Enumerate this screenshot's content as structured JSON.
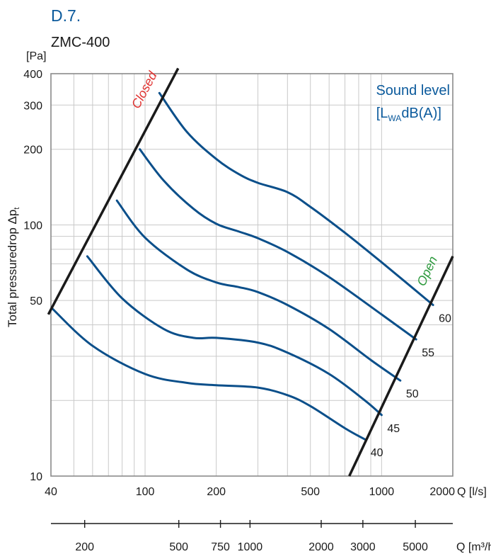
{
  "header": {
    "code": "D.7.",
    "model": "ZMC-400"
  },
  "colors": {
    "curve": "#0b4f8a",
    "title_blue": "#0b5a9c",
    "closed_label": "#e0312f",
    "open_label": "#2e9a3e",
    "grid": "#c9c9c9",
    "boundary": "#1a1a1a"
  },
  "chart_data": {
    "type": "line",
    "x_scale": "log",
    "y_scale": "log",
    "xlim": [
      40,
      2000
    ],
    "ylim": [
      10,
      400
    ],
    "ylabel": "Total pressuredrop Δp",
    "ylabel_sub": "t",
    "y_unit": "[Pa]",
    "x_unit": "Q [l/s]",
    "x2_unit": "Q [m³/h]",
    "x_ticks": [
      40,
      100,
      200,
      500,
      1000,
      2000
    ],
    "x_tick_labels": [
      "40",
      "100",
      "200",
      "500",
      "1000",
      "2000"
    ],
    "y_ticks": [
      10,
      50,
      100,
      200,
      300,
      400
    ],
    "y_tick_labels": [
      "10",
      "50",
      "100",
      "200",
      "300",
      "400"
    ],
    "x2_ticks": [
      200,
      500,
      750,
      1000,
      2000,
      3000,
      5000
    ],
    "x2_tick_labels": [
      "200",
      "500",
      "750",
      "1000",
      "2000",
      "3000",
      "5000"
    ],
    "legend_title": "Sound level",
    "legend_unit_pre": "[L",
    "legend_unit_sub": "WA",
    "legend_unit_post": "dB(A)]",
    "boundary_labels": {
      "closed": "Closed",
      "open": "Open"
    },
    "boundaries": {
      "closed": [
        [
          39,
          44
        ],
        [
          138,
          420
        ]
      ],
      "open": [
        [
          730,
          10
        ],
        [
          2000,
          75
        ]
      ]
    },
    "series": [
      {
        "label": "40",
        "x": [
          40,
          60,
          100,
          150,
          200,
          300,
          400,
          500,
          700,
          850
        ],
        "y": [
          47,
          33,
          25.5,
          23.5,
          23,
          22.5,
          21,
          19,
          15.5,
          14
        ]
      },
      {
        "label": "45",
        "x": [
          57,
          80,
          120,
          160,
          200,
          300,
          400,
          600,
          850,
          1000
        ],
        "y": [
          75,
          51,
          38.5,
          35.5,
          35.5,
          34,
          31,
          25.5,
          20,
          17.5
        ]
      },
      {
        "label": "50",
        "x": [
          76,
          100,
          150,
          200,
          250,
          300,
          400,
          600,
          900,
          1200
        ],
        "y": [
          125,
          89,
          66.5,
          59,
          56.5,
          54,
          48,
          38.5,
          29,
          24
        ]
      },
      {
        "label": "55",
        "x": [
          95,
          120,
          160,
          200,
          250,
          300,
          400,
          600,
          1000,
          1400
        ],
        "y": [
          200,
          150,
          116,
          101,
          94,
          88.5,
          78,
          62,
          44,
          35
        ]
      },
      {
        "label": "60",
        "x": [
          115,
          150,
          200,
          250,
          300,
          400,
          500,
          700,
          1000,
          1650
        ],
        "y": [
          335,
          235,
          183,
          159,
          147,
          135,
          118,
          93,
          71,
          48
        ]
      }
    ]
  }
}
